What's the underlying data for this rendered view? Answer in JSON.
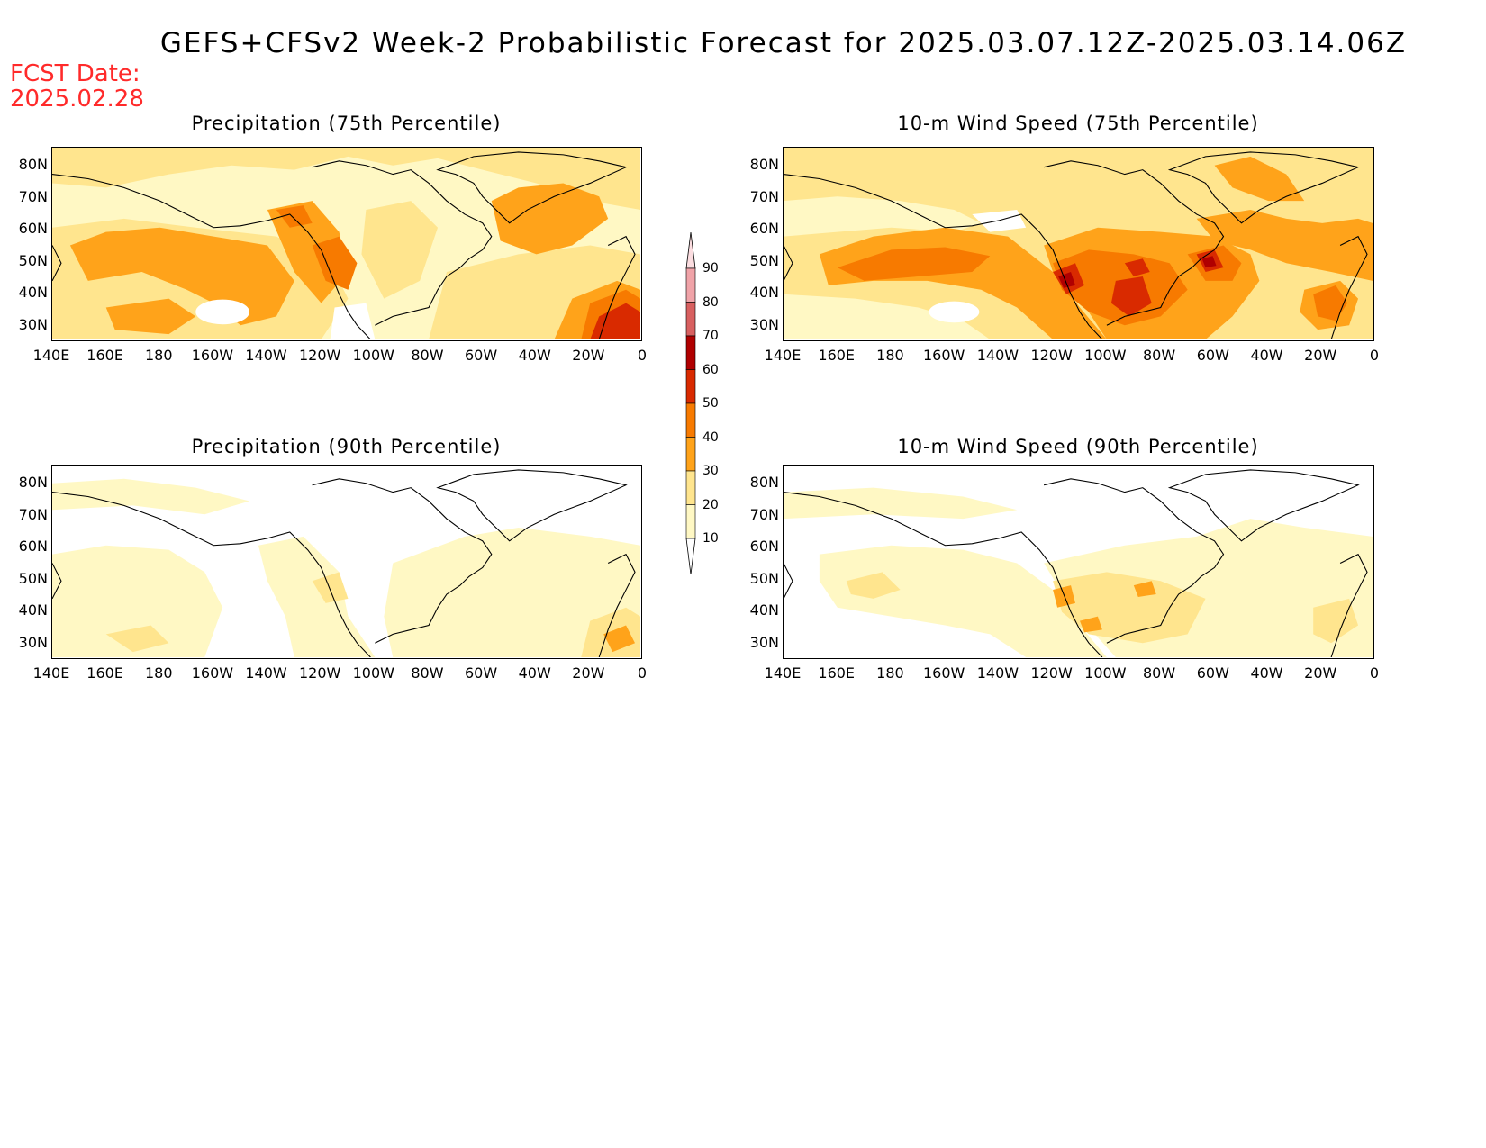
{
  "title": "GEFS+CFSv2 Week-2 Probabilistic Forecast for 2025.03.07.12Z-2025.03.14.06Z",
  "fcst_date_label": "FCST Date:",
  "fcst_date_value": "2025.02.28",
  "colors": {
    "c10": "#fff8c4",
    "c20": "#ffe58e",
    "c30": "#ffa31a",
    "c40": "#f77a00",
    "c50": "#d92a00",
    "c60": "#b00000",
    "c70": "#d86060",
    "c80": "#f0a3a8",
    "c90": "#fbdde0"
  },
  "colorbar": {
    "ticks": [
      "10",
      "20",
      "30",
      "40",
      "50",
      "60",
      "70",
      "80",
      "90"
    ]
  },
  "lat_ticks": [
    "80N",
    "70N",
    "60N",
    "50N",
    "40N",
    "30N"
  ],
  "lon_ticks": [
    "140E",
    "160E",
    "180",
    "160W",
    "140W",
    "120W",
    "100W",
    "80W",
    "60W",
    "40W",
    "20W",
    "0"
  ],
  "panels": [
    {
      "id": "precip-75",
      "title": "Precipitation (75th Percentile)"
    },
    {
      "id": "wind-75",
      "title": "10-m Wind Speed (75th Percentile)"
    },
    {
      "id": "precip-90",
      "title": "Precipitation (90th Percentile)"
    },
    {
      "id": "wind-90",
      "title": "10-m Wind Speed (90th Percentile)"
    }
  ]
}
